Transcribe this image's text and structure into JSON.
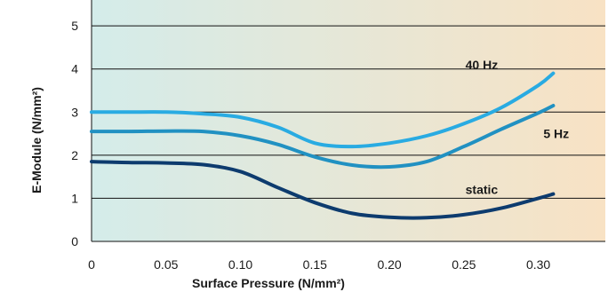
{
  "chart_data": {
    "type": "line",
    "title": "",
    "xlabel": "Surface Pressure (N/mm²)",
    "ylabel": "E-Module (N/mm²)",
    "xlim": [
      0,
      0.345
    ],
    "ylim": [
      0,
      5.6
    ],
    "x_ticks": [
      0,
      0.05,
      0.1,
      0.15,
      0.2,
      0.25,
      0.3
    ],
    "x_tick_labels": [
      "0",
      "0.05",
      "0.10",
      "0.15",
      "0.20",
      "0.25",
      "0.30"
    ],
    "y_ticks": [
      0,
      1,
      2,
      3,
      4,
      5
    ],
    "y_tick_labels": [
      "0",
      "1",
      "2",
      "3",
      "4",
      "5"
    ],
    "grid": "horizontal",
    "background_gradient": [
      "#d4ecea",
      "#f8e2c4"
    ],
    "series": [
      {
        "name": "40 Hz",
        "color": "#29abe2",
        "x": [
          0,
          0.025,
          0.05,
          0.075,
          0.1,
          0.125,
          0.15,
          0.175,
          0.2,
          0.225,
          0.25,
          0.275,
          0.3,
          0.31
        ],
        "y": [
          3.0,
          3.0,
          3.0,
          2.96,
          2.88,
          2.65,
          2.28,
          2.2,
          2.28,
          2.45,
          2.73,
          3.1,
          3.62,
          3.9
        ]
      },
      {
        "name": "5 Hz",
        "color": "#2191c2",
        "x": [
          0,
          0.025,
          0.05,
          0.075,
          0.1,
          0.125,
          0.15,
          0.175,
          0.2,
          0.225,
          0.25,
          0.275,
          0.3,
          0.31
        ],
        "y": [
          2.55,
          2.55,
          2.56,
          2.55,
          2.45,
          2.25,
          1.96,
          1.77,
          1.73,
          1.85,
          2.2,
          2.6,
          2.98,
          3.15
        ]
      },
      {
        "name": "static",
        "color": "#0d3b6e",
        "x": [
          0,
          0.025,
          0.05,
          0.075,
          0.1,
          0.125,
          0.15,
          0.175,
          0.2,
          0.225,
          0.25,
          0.275,
          0.3,
          0.31
        ],
        "y": [
          1.85,
          1.83,
          1.82,
          1.78,
          1.62,
          1.25,
          0.9,
          0.65,
          0.56,
          0.55,
          0.62,
          0.77,
          1.0,
          1.1
        ]
      }
    ]
  }
}
